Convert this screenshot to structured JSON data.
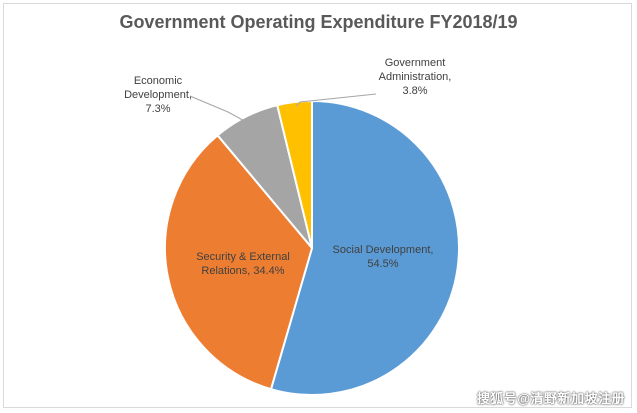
{
  "chart_data": {
    "type": "pie",
    "title": "Government Operating Expenditure FY2018/19",
    "slices": [
      {
        "label": "Social Development",
        "value": 54.5,
        "display": "Social Development,\n54.5%",
        "color": "#5b9bd5"
      },
      {
        "label": "Security & External Relations",
        "value": 34.4,
        "display": "Security & External\nRelations, 34.4%",
        "color": "#ed7d31"
      },
      {
        "label": "Economic Development",
        "value": 7.3,
        "display": "Economic\nDevelopment,\n7.3%",
        "color": "#a5a5a5"
      },
      {
        "label": "Government Administration",
        "value": 3.8,
        "display": "Government\nAdministration,\n3.8%",
        "color": "#ffc000"
      }
    ],
    "start": "12 o'clock",
    "direction": "clockwise",
    "legend": "none"
  },
  "watermark": "搜狐号@清野新加坡注册"
}
